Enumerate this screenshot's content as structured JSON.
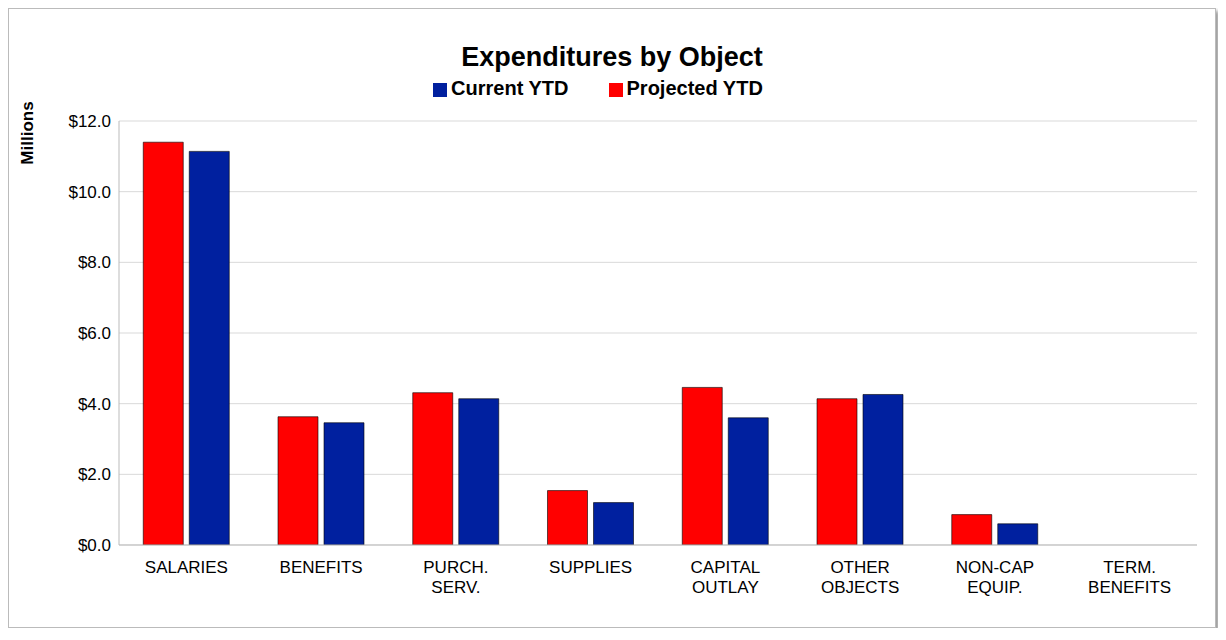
{
  "chart_data": {
    "type": "bar",
    "title": "Expenditures by Object",
    "y_label": "Millions",
    "categories": [
      "SALARIES",
      "BENEFITS",
      "PURCH. SERV.",
      "SUPPLIES",
      "CAPITAL OUTLAY",
      "OTHER OBJECTS",
      "NON-CAP EQUIP.",
      "TERM. BENEFITS"
    ],
    "series": [
      {
        "name": "Projected YTD",
        "color": "#ff0000",
        "values": [
          11.4,
          3.63,
          4.31,
          1.54,
          4.46,
          4.14,
          0.86,
          0
        ]
      },
      {
        "name": "Current YTD",
        "color": "#00209f",
        "values": [
          11.14,
          3.46,
          4.14,
          1.2,
          3.6,
          4.26,
          0.6,
          0
        ]
      }
    ],
    "ylim": [
      0,
      12
    ],
    "yticks": [
      {
        "value": 0,
        "label": "$0.0"
      },
      {
        "value": 2,
        "label": "$2.0"
      },
      {
        "value": 4,
        "label": "$4.0"
      },
      {
        "value": 6,
        "label": "$6.0"
      },
      {
        "value": 8,
        "label": "$8.0"
      },
      {
        "value": 10,
        "label": "$10.0"
      },
      {
        "value": 12,
        "label": "$12.0"
      }
    ],
    "grid": true,
    "legend": "top"
  }
}
